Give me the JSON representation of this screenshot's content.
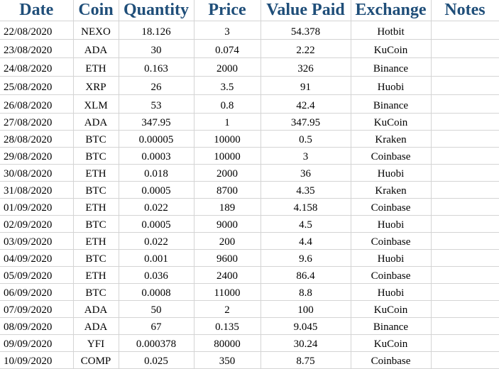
{
  "headers": [
    "Date",
    "Coin",
    "Quantity",
    "Price",
    "Value Paid",
    "Exchange",
    "Notes"
  ],
  "rows": [
    [
      "22/08/2020",
      "NEXO",
      "18.126",
      "3",
      "54.378",
      "Hotbit",
      ""
    ],
    [
      "23/08/2020",
      "ADA",
      "30",
      "0.074",
      "2.22",
      "KuCoin",
      ""
    ],
    [
      "24/08/2020",
      "ETH",
      "0.163",
      "2000",
      "326",
      "Binance",
      ""
    ],
    [
      "25/08/2020",
      "XRP",
      "26",
      "3.5",
      "91",
      "Huobi",
      ""
    ],
    [
      "26/08/2020",
      "XLM",
      "53",
      "0.8",
      "42.4",
      "Binance",
      ""
    ],
    [
      "27/08/2020",
      "ADA",
      "347.95",
      "1",
      "347.95",
      "KuCoin",
      ""
    ],
    [
      "28/08/2020",
      "BTC",
      "0.00005",
      "10000",
      "0.5",
      "Kraken",
      ""
    ],
    [
      "29/08/2020",
      "BTC",
      "0.0003",
      "10000",
      "3",
      "Coinbase",
      ""
    ],
    [
      "30/08/2020",
      "ETH",
      "0.018",
      "2000",
      "36",
      "Huobi",
      ""
    ],
    [
      "31/08/2020",
      "BTC",
      "0.0005",
      "8700",
      "4.35",
      "Kraken",
      ""
    ],
    [
      "01/09/2020",
      "ETH",
      "0.022",
      "189",
      "4.158",
      "Coinbase",
      ""
    ],
    [
      "02/09/2020",
      "BTC",
      "0.0005",
      "9000",
      "4.5",
      "Huobi",
      ""
    ],
    [
      "03/09/2020",
      "ETH",
      "0.022",
      "200",
      "4.4",
      "Coinbase",
      ""
    ],
    [
      "04/09/2020",
      "BTC",
      "0.001",
      "9600",
      "9.6",
      "Huobi",
      ""
    ],
    [
      "05/09/2020",
      "ETH",
      "0.036",
      "2400",
      "86.4",
      "Coinbase",
      ""
    ],
    [
      "06/09/2020",
      "BTC",
      "0.0008",
      "11000",
      "8.8",
      "Huobi",
      ""
    ],
    [
      "07/09/2020",
      "ADA",
      "50",
      "2",
      "100",
      "KuCoin",
      ""
    ],
    [
      "08/09/2020",
      "ADA",
      "67",
      "0.135",
      "9.045",
      "Binance",
      ""
    ],
    [
      "09/09/2020",
      "YFI",
      "0.000378",
      "80000",
      "30.24",
      "KuCoin",
      ""
    ],
    [
      "10/09/2020",
      "COMP",
      "0.025",
      "350",
      "8.75",
      "Coinbase",
      ""
    ]
  ],
  "colors": {
    "header_text": "#1f4e79",
    "gridline": "#d4d4d4",
    "cell_text": "#000000"
  }
}
